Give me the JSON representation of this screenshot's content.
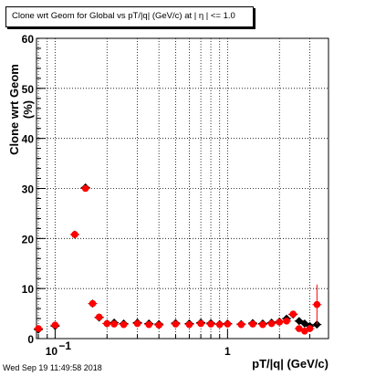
{
  "chart_data": {
    "type": "scatter",
    "title": "Clone wrt Geom for Global vs pT/|q| (GeV/c) at |  η | <= 1.0",
    "xlabel": "pT/|q| (GeV/c)",
    "ylabel": "Clone wrt Geom (%)",
    "xscale": "log",
    "xlim": [
      0.078,
      3.85
    ],
    "ylim": [
      0,
      60
    ],
    "grid": true,
    "y_ticks": [
      {
        "value": 0,
        "label": "0"
      },
      {
        "value": 10,
        "label": "10"
      },
      {
        "value": 20,
        "label": "20"
      },
      {
        "value": 30,
        "label": "30"
      },
      {
        "value": 40,
        "label": "40"
      },
      {
        "value": 50,
        "label": "50"
      },
      {
        "value": 60,
        "label": "60"
      }
    ],
    "x_ticks": [
      {
        "value": 0.1,
        "label": "10",
        "exp": "−1"
      },
      {
        "value": 1,
        "label": "1",
        "exp": ""
      }
    ],
    "series": [
      {
        "marker": "diamond",
        "color": "#000000",
        "x": [
          0.08,
          0.1,
          0.13,
          0.15,
          0.165,
          0.18,
          0.2,
          0.22,
          0.25,
          0.3,
          0.35,
          0.4,
          0.5,
          0.6,
          0.7,
          0.8,
          0.9,
          1.0,
          1.2,
          1.4,
          1.6,
          1.8,
          2.0,
          2.2,
          2.4,
          2.6,
          2.8,
          3.0,
          3.3
        ],
        "y": [
          1.8,
          2.5,
          20.8,
          30.2,
          7.0,
          4.2,
          3.0,
          3.2,
          3.0,
          3.2,
          3.0,
          2.9,
          3.1,
          3.0,
          3.2,
          3.1,
          2.9,
          3.0,
          2.9,
          3.1,
          3.0,
          3.2,
          3.4,
          4.0,
          4.8,
          3.5,
          3.0,
          2.5,
          2.8
        ]
      },
      {
        "marker": "circle",
        "color": "#ff0000",
        "x": [
          0.08,
          0.1,
          0.13,
          0.15,
          0.165,
          0.18,
          0.2,
          0.22,
          0.25,
          0.3,
          0.35,
          0.4,
          0.5,
          0.6,
          0.7,
          0.8,
          0.9,
          1.0,
          1.2,
          1.4,
          1.6,
          1.8,
          2.0,
          2.2,
          2.4,
          2.6,
          2.8,
          3.0,
          3.3
        ],
        "y": [
          2.0,
          2.7,
          20.8,
          30.0,
          7.0,
          4.3,
          3.0,
          2.9,
          2.8,
          3.0,
          2.8,
          2.7,
          2.9,
          2.8,
          3.0,
          2.9,
          2.8,
          2.9,
          2.8,
          2.9,
          2.8,
          3.0,
          3.3,
          3.5,
          4.9,
          2.0,
          1.5,
          2.0,
          6.8
        ]
      }
    ]
  },
  "footer": {
    "date": "Wed Sep 19 11:49:58 2018"
  }
}
